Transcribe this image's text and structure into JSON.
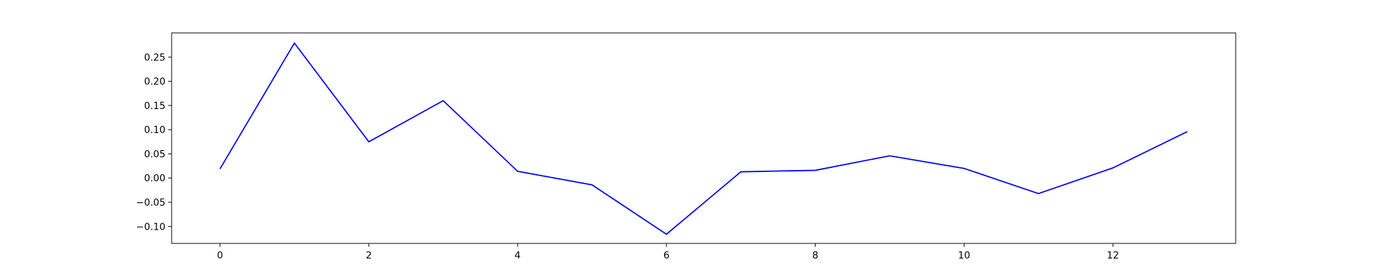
{
  "chart_data": {
    "type": "line",
    "title": "",
    "xlabel": "",
    "ylabel": "",
    "xlim": [
      -0.65,
      13.65
    ],
    "ylim": [
      -0.135,
      0.3
    ],
    "x_ticks": [
      0,
      2,
      4,
      6,
      8,
      10,
      12
    ],
    "x_tick_labels": [
      "0",
      "2",
      "4",
      "6",
      "8",
      "10",
      "12"
    ],
    "y_ticks": [
      -0.1,
      -0.05,
      0.0,
      0.05,
      0.1,
      0.15,
      0.2,
      0.25
    ],
    "y_tick_labels": [
      "−0.10",
      "−0.05",
      "0.00",
      "0.05",
      "0.10",
      "0.15",
      "0.20",
      "0.25"
    ],
    "grid": false,
    "legend": "none",
    "series": [
      {
        "color": "#0000ff",
        "x": [
          0,
          1,
          2,
          3,
          4,
          5,
          6,
          7,
          8,
          9,
          10,
          11,
          12,
          13
        ],
        "values": [
          0.019,
          0.279,
          0.075,
          0.16,
          0.014,
          -0.014,
          -0.116,
          0.013,
          0.016,
          0.046,
          0.02,
          -0.032,
          0.021,
          0.096
        ]
      }
    ]
  }
}
